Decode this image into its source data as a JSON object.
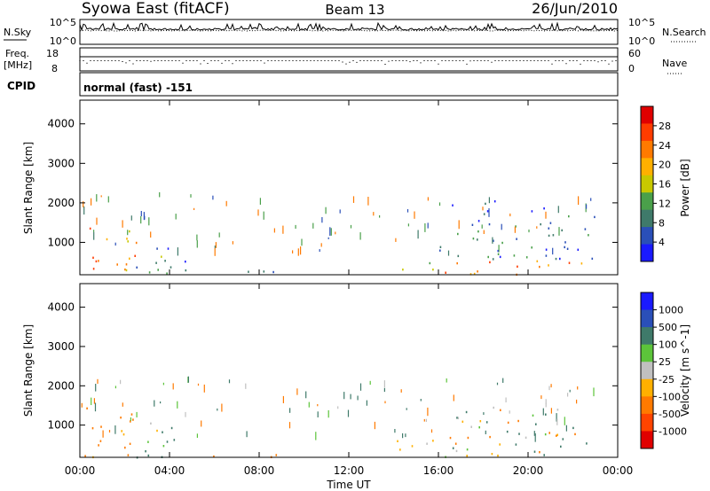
{
  "header": {
    "station": "Syowa East (fitACF)",
    "beam": "Beam 13",
    "date": "26/Jun/2010"
  },
  "noise_panel": {
    "left_label": "N.Sky",
    "right_label": "N.Search",
    "left_ticks": [
      "10^5",
      "10^0"
    ],
    "right_ticks": [
      "10^5",
      "10^0"
    ]
  },
  "freq_panel": {
    "left_label_1": "Freq.",
    "left_label_2": "[MHz]",
    "right_label": "Nave",
    "left_ticks": [
      "18",
      "8"
    ],
    "right_ticks": [
      "60",
      "0"
    ]
  },
  "cpid": {
    "label": "CPID",
    "value": "normal (fast) -151"
  },
  "x_axis": {
    "label": "Time UT",
    "ticks": [
      "00:00",
      "04:00",
      "08:00",
      "12:00",
      "16:00",
      "20:00",
      "00:00"
    ]
  },
  "colors": {
    "power_scale": [
      "#1a1aff",
      "#2a4fb8",
      "#3f7a6a",
      "#4aa04a",
      "#c8c800",
      "#ffb000",
      "#ff7a00",
      "#ff3c00",
      "#e00000"
    ],
    "velocity_scale": [
      "#1a1aff",
      "#2a4fb8",
      "#3f7a6a",
      "#5cc43a",
      "#c0c0c0",
      "#ffb000",
      "#ff7a00",
      "#ff4400",
      "#e00000"
    ]
  },
  "chart_data": [
    {
      "type": "heatmap",
      "title": "Power",
      "xlabel": "",
      "ylabel": "Slant Range [km]",
      "y_ticks": [
        "1000",
        "2000",
        "3000",
        "4000"
      ],
      "xlim": [
        0,
        24
      ],
      "ylim": [
        180,
        4600
      ],
      "colorbar": {
        "label": "Power [dB]",
        "ticks": [
          "4",
          "8",
          "12",
          "16",
          "20",
          "24",
          "28"
        ]
      },
      "regions": [
        {
          "x": [
            0.0,
            2.5
          ],
          "y": [
            200,
            1600
          ],
          "value_db": 22
        },
        {
          "x": [
            2.5,
            4.8
          ],
          "y": [
            200,
            1300
          ],
          "value_db": 10
        },
        {
          "x": [
            4.8,
            9.0
          ],
          "y": [
            200,
            350
          ],
          "value_db": 12
        },
        {
          "x": [
            14.0,
            16.0
          ],
          "y": [
            200,
            500
          ],
          "value_db": 12
        },
        {
          "x": [
            16.0,
            23.0
          ],
          "y": [
            600,
            2100
          ],
          "value_db": 6
        },
        {
          "x": [
            16.0,
            23.0
          ],
          "y": [
            200,
            600
          ],
          "value_db": 24
        }
      ]
    },
    {
      "type": "heatmap",
      "title": "Velocity",
      "xlabel": "Time UT",
      "ylabel": "Slant Range [km]",
      "y_ticks": [
        "1000",
        "2000",
        "3000",
        "4000"
      ],
      "xlim": [
        0,
        24
      ],
      "ylim": [
        180,
        4600
      ],
      "colorbar": {
        "label": "Velocity [m s^-1]",
        "ticks": [
          "1000",
          "500",
          "100",
          "25",
          "-25",
          "-100",
          "-500",
          "-1000"
        ]
      },
      "regions": [
        {
          "x": [
            0.0,
            2.5
          ],
          "y": [
            200,
            1600
          ],
          "value_ms": -300
        },
        {
          "x": [
            2.5,
            4.8
          ],
          "y": [
            200,
            1300
          ],
          "value_ms": 200
        },
        {
          "x": [
            4.8,
            9.0
          ],
          "y": [
            200,
            350
          ],
          "value_ms": -150
        },
        {
          "x": [
            14.0,
            16.5
          ],
          "y": [
            200,
            700
          ],
          "value_ms": 150
        },
        {
          "x": [
            16.5,
            23.0
          ],
          "y": [
            700,
            1600
          ],
          "value_ms": 0
        },
        {
          "x": [
            16.5,
            23.0
          ],
          "y": [
            200,
            700
          ],
          "value_ms": 80
        }
      ]
    }
  ]
}
